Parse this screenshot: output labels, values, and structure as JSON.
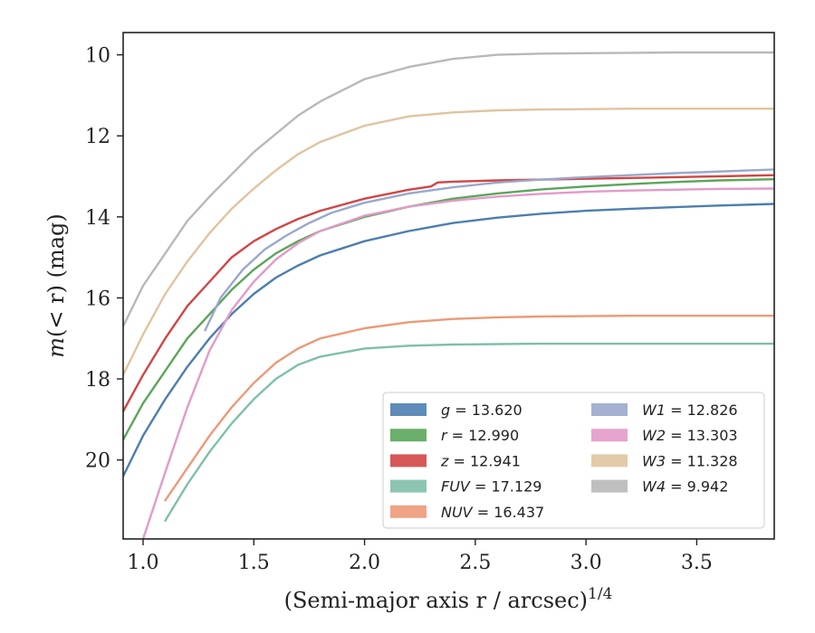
{
  "chart_data": {
    "type": "line",
    "xlabel": "(Semi-major axis r / arcsec)",
    "xlabel_exponent": "1/4",
    "ylabel_prefix": "m",
    "ylabel_middle": "(< r) (mag)",
    "xlim": [
      0.91,
      3.85
    ],
    "ylim": [
      21.95,
      9.45
    ],
    "xticks": [
      1.0,
      1.5,
      2.0,
      2.5,
      3.0,
      3.5
    ],
    "xtick_labels": [
      "1.0",
      "1.5",
      "2.0",
      "2.5",
      "3.0",
      "3.5"
    ],
    "yticks": [
      10,
      12,
      14,
      16,
      18,
      20
    ],
    "ytick_labels": [
      "10",
      "12",
      "14",
      "16",
      "18",
      "20"
    ],
    "grid": false,
    "legend_position": "lower-right",
    "legend_columns": 2,
    "series": [
      {
        "band": "g",
        "value": "13.620",
        "color": "#4c7eb0",
        "x": [
          0.91,
          1.0,
          1.1,
          1.2,
          1.3,
          1.4,
          1.5,
          1.6,
          1.7,
          1.8,
          2.0,
          2.2,
          2.4,
          2.6,
          2.8,
          3.0,
          3.2,
          3.4,
          3.6,
          3.85
        ],
        "y": [
          20.4,
          19.4,
          18.5,
          17.7,
          17.0,
          16.4,
          15.9,
          15.5,
          15.2,
          14.95,
          14.6,
          14.35,
          14.15,
          14.02,
          13.92,
          13.85,
          13.8,
          13.76,
          13.72,
          13.68
        ]
      },
      {
        "band": "r",
        "value": "12.990",
        "color": "#5aa65a",
        "x": [
          0.91,
          1.0,
          1.1,
          1.2,
          1.3,
          1.4,
          1.5,
          1.6,
          1.7,
          1.8,
          2.0,
          2.2,
          2.4,
          2.6,
          2.8,
          3.0,
          3.2,
          3.4,
          3.6,
          3.85
        ],
        "y": [
          19.5,
          18.6,
          17.8,
          17.0,
          16.4,
          15.8,
          15.3,
          14.9,
          14.6,
          14.35,
          14.0,
          13.75,
          13.55,
          13.42,
          13.32,
          13.25,
          13.19,
          13.14,
          13.1,
          13.07
        ]
      },
      {
        "band": "z",
        "value": "12.941",
        "color": "#d24545",
        "x": [
          0.91,
          1.0,
          1.1,
          1.2,
          1.3,
          1.4,
          1.5,
          1.6,
          1.7,
          1.8,
          2.0,
          2.2,
          2.3,
          2.33,
          2.4,
          2.6,
          2.8,
          3.0,
          3.2,
          3.4,
          3.6,
          3.85
        ],
        "y": [
          18.8,
          17.9,
          17.0,
          16.2,
          15.6,
          15.0,
          14.6,
          14.3,
          14.05,
          13.85,
          13.55,
          13.33,
          13.25,
          13.15,
          13.13,
          13.1,
          13.08,
          13.06,
          13.04,
          13.02,
          13.0,
          12.97
        ]
      },
      {
        "band": "FUV",
        "value": "17.129",
        "color": "#7fbfaa",
        "x": [
          1.1,
          1.2,
          1.3,
          1.4,
          1.5,
          1.6,
          1.7,
          1.8,
          2.0,
          2.2,
          2.4,
          2.6,
          2.8,
          3.0,
          3.2,
          3.4,
          3.6,
          3.85
        ],
        "y": [
          21.5,
          20.6,
          19.8,
          19.1,
          18.5,
          18.0,
          17.65,
          17.45,
          17.25,
          17.18,
          17.15,
          17.14,
          17.13,
          17.13,
          17.13,
          17.13,
          17.13,
          17.13
        ]
      },
      {
        "band": "NUV",
        "value": "16.437",
        "color": "#ec9a78",
        "x": [
          1.1,
          1.2,
          1.3,
          1.4,
          1.5,
          1.6,
          1.7,
          1.8,
          2.0,
          2.2,
          2.4,
          2.6,
          2.8,
          3.0,
          3.2,
          3.4,
          3.6,
          3.85
        ],
        "y": [
          21.0,
          20.2,
          19.4,
          18.7,
          18.1,
          17.6,
          17.25,
          17.0,
          16.75,
          16.6,
          16.52,
          16.48,
          16.46,
          16.45,
          16.44,
          16.44,
          16.44,
          16.44
        ]
      },
      {
        "band": "W1",
        "value": "12.826",
        "color": "#9aa8cc",
        "x": [
          1.28,
          1.35,
          1.45,
          1.55,
          1.65,
          1.75,
          1.85,
          2.0,
          2.2,
          2.4,
          2.6,
          2.8,
          3.0,
          3.2,
          3.4,
          3.6,
          3.85
        ],
        "y": [
          16.8,
          16.0,
          15.3,
          14.8,
          14.45,
          14.15,
          13.9,
          13.65,
          13.42,
          13.27,
          13.15,
          13.08,
          13.02,
          12.97,
          12.92,
          12.88,
          12.83
        ]
      },
      {
        "band": "W2",
        "value": "13.303",
        "color": "#e39ac9",
        "x": [
          1.0,
          1.1,
          1.2,
          1.3,
          1.4,
          1.5,
          1.6,
          1.7,
          1.8,
          2.0,
          2.2,
          2.4,
          2.6,
          2.8,
          3.0,
          3.2,
          3.4,
          3.6,
          3.85
        ],
        "y": [
          21.95,
          20.3,
          18.7,
          17.3,
          16.3,
          15.6,
          15.05,
          14.65,
          14.35,
          13.97,
          13.75,
          13.6,
          13.5,
          13.43,
          13.38,
          13.35,
          13.33,
          13.31,
          13.3
        ]
      },
      {
        "band": "W3",
        "value": "11.328",
        "color": "#e0c4a0",
        "x": [
          0.91,
          1.0,
          1.1,
          1.2,
          1.3,
          1.4,
          1.5,
          1.6,
          1.7,
          1.8,
          2.0,
          2.2,
          2.4,
          2.6,
          2.8,
          3.0,
          3.2,
          3.4,
          3.6,
          3.85
        ],
        "y": [
          17.9,
          16.9,
          15.9,
          15.1,
          14.4,
          13.8,
          13.3,
          12.85,
          12.45,
          12.15,
          11.75,
          11.52,
          11.42,
          11.37,
          11.35,
          11.34,
          11.33,
          11.33,
          11.33,
          11.33
        ]
      },
      {
        "band": "W4",
        "value": "9.942",
        "color": "#b8b8b8",
        "x": [
          0.91,
          1.0,
          1.1,
          1.2,
          1.3,
          1.4,
          1.5,
          1.6,
          1.7,
          1.8,
          2.0,
          2.2,
          2.4,
          2.6,
          2.8,
          3.0,
          3.2,
          3.4,
          3.6,
          3.85
        ],
        "y": [
          16.7,
          15.7,
          14.9,
          14.1,
          13.5,
          12.95,
          12.4,
          11.95,
          11.5,
          11.15,
          10.6,
          10.3,
          10.1,
          10.0,
          9.97,
          9.96,
          9.95,
          9.94,
          9.94,
          9.94
        ]
      }
    ]
  }
}
